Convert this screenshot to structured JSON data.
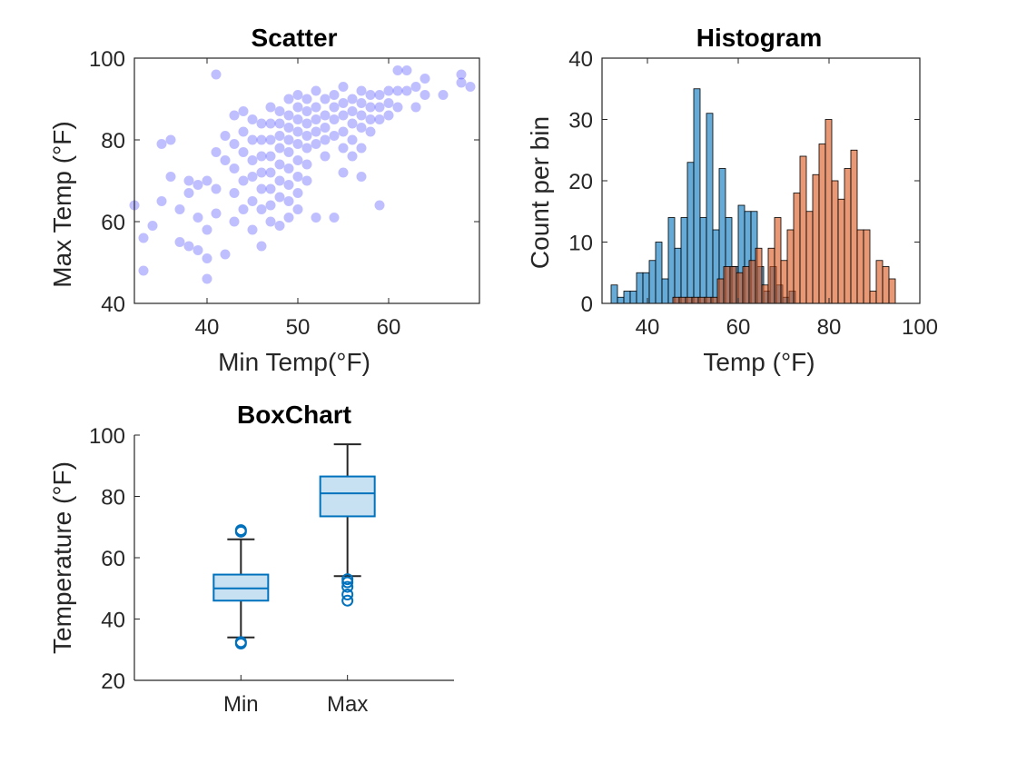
{
  "figure": {
    "background": "#ffffff",
    "colors": {
      "scatter": "#0000ff",
      "hist_min": "#0072bd",
      "hist_max": "#d95319",
      "box": "#0072bd",
      "box_fill": "#c8e1f2"
    }
  },
  "chart_data": [
    {
      "type": "scatter",
      "title": "Scatter",
      "xlabel": "Min Temp(°F)",
      "ylabel": "Max Temp (°F)",
      "xlim": [
        32,
        70
      ],
      "ylim": [
        40,
        100
      ],
      "xticks": [
        "40",
        "50",
        "60"
      ],
      "yticks": [
        "40",
        "60",
        "80",
        "100"
      ],
      "alpha": 0.25,
      "points": [
        [
          32,
          64
        ],
        [
          33,
          56
        ],
        [
          33,
          48
        ],
        [
          34,
          59
        ],
        [
          35,
          65
        ],
        [
          35,
          79
        ],
        [
          36,
          80
        ],
        [
          36,
          71
        ],
        [
          37,
          63
        ],
        [
          37,
          55
        ],
        [
          38,
          70
        ],
        [
          38,
          54
        ],
        [
          38,
          67
        ],
        [
          39,
          69
        ],
        [
          39,
          61
        ],
        [
          39,
          53
        ],
        [
          40,
          70
        ],
        [
          40,
          58
        ],
        [
          40,
          51
        ],
        [
          40,
          46
        ],
        [
          41,
          96
        ],
        [
          41,
          77
        ],
        [
          41,
          68
        ],
        [
          41,
          62
        ],
        [
          42,
          75
        ],
        [
          42,
          52
        ],
        [
          42,
          81
        ],
        [
          43,
          86
        ],
        [
          43,
          79
        ],
        [
          43,
          73
        ],
        [
          43,
          67
        ],
        [
          43,
          60
        ],
        [
          44,
          87
        ],
        [
          44,
          82
        ],
        [
          44,
          77
        ],
        [
          44,
          70
        ],
        [
          44,
          63
        ],
        [
          45,
          85
        ],
        [
          45,
          80
        ],
        [
          45,
          75
        ],
        [
          45,
          71
        ],
        [
          45,
          65
        ],
        [
          45,
          58
        ],
        [
          46,
          84
        ],
        [
          46,
          80
        ],
        [
          46,
          76
        ],
        [
          46,
          72
        ],
        [
          46,
          68
        ],
        [
          46,
          63
        ],
        [
          46,
          54
        ],
        [
          47,
          88
        ],
        [
          47,
          84
        ],
        [
          47,
          80
        ],
        [
          47,
          76
        ],
        [
          47,
          72
        ],
        [
          47,
          68
        ],
        [
          47,
          64
        ],
        [
          47,
          60
        ],
        [
          48,
          87
        ],
        [
          48,
          84
        ],
        [
          48,
          81
        ],
        [
          48,
          78
        ],
        [
          48,
          74
        ],
        [
          48,
          70
        ],
        [
          48,
          66
        ],
        [
          48,
          59
        ],
        [
          49,
          90
        ],
        [
          49,
          86
        ],
        [
          49,
          83
        ],
        [
          49,
          80
        ],
        [
          49,
          77
        ],
        [
          49,
          73
        ],
        [
          49,
          69
        ],
        [
          49,
          65
        ],
        [
          49,
          61
        ],
        [
          50,
          91
        ],
        [
          50,
          88
        ],
        [
          50,
          85
        ],
        [
          50,
          82
        ],
        [
          50,
          79
        ],
        [
          50,
          75
        ],
        [
          50,
          71
        ],
        [
          50,
          67
        ],
        [
          50,
          63
        ],
        [
          51,
          90
        ],
        [
          51,
          87
        ],
        [
          51,
          84
        ],
        [
          51,
          81
        ],
        [
          51,
          78
        ],
        [
          51,
          74
        ],
        [
          51,
          70
        ],
        [
          52,
          92
        ],
        [
          52,
          88
        ],
        [
          52,
          85
        ],
        [
          52,
          82
        ],
        [
          52,
          79
        ],
        [
          52,
          61
        ],
        [
          53,
          90
        ],
        [
          53,
          86
        ],
        [
          53,
          83
        ],
        [
          53,
          80
        ],
        [
          53,
          76
        ],
        [
          54,
          91
        ],
        [
          54,
          88
        ],
        [
          54,
          85
        ],
        [
          54,
          81
        ],
        [
          54,
          61
        ],
        [
          55,
          93
        ],
        [
          55,
          89
        ],
        [
          55,
          86
        ],
        [
          55,
          82
        ],
        [
          55,
          78
        ],
        [
          55,
          72
        ],
        [
          56,
          90
        ],
        [
          56,
          87
        ],
        [
          56,
          84
        ],
        [
          56,
          80
        ],
        [
          56,
          76
        ],
        [
          57,
          92
        ],
        [
          57,
          89
        ],
        [
          57,
          86
        ],
        [
          57,
          83
        ],
        [
          57,
          78
        ],
        [
          57,
          71
        ],
        [
          58,
          91
        ],
        [
          58,
          88
        ],
        [
          58,
          85
        ],
        [
          58,
          82
        ],
        [
          59,
          91
        ],
        [
          59,
          88
        ],
        [
          59,
          85
        ],
        [
          59,
          64
        ],
        [
          60,
          92
        ],
        [
          60,
          89
        ],
        [
          60,
          86
        ],
        [
          61,
          97
        ],
        [
          61,
          92
        ],
        [
          61,
          88
        ],
        [
          62,
          97
        ],
        [
          62,
          92
        ],
        [
          63,
          93
        ],
        [
          63,
          88
        ],
        [
          64,
          95
        ],
        [
          64,
          91
        ],
        [
          66,
          91
        ],
        [
          68,
          96
        ],
        [
          68,
          94
        ],
        [
          69,
          93
        ]
      ]
    },
    {
      "type": "bar",
      "subtype": "histogram",
      "title": "Histogram",
      "xlabel": "Temp (°F)",
      "ylabel": "Count per bin",
      "xlim": [
        30,
        100
      ],
      "ylim": [
        0,
        40
      ],
      "xticks": [
        "40",
        "60",
        "80",
        "100"
      ],
      "yticks": [
        "0",
        "10",
        "20",
        "30",
        "40"
      ],
      "bin_width": 1.4,
      "series": [
        {
          "edges_start": 32,
          "counts": [
            3,
            1,
            2,
            2,
            5,
            5,
            7,
            10,
            4,
            14,
            9,
            14,
            23,
            35,
            14,
            31,
            12,
            22,
            14,
            6,
            16,
            15,
            15,
            6,
            2,
            6,
            3,
            1,
            2
          ]
        },
        {
          "edges_start": 45.6,
          "counts": [
            1,
            1,
            1,
            1,
            1,
            1,
            1,
            4,
            6,
            6,
            5,
            6,
            7,
            9,
            3,
            9,
            14,
            7,
            12,
            18,
            24,
            15,
            21,
            26,
            30,
            20,
            17,
            22,
            25,
            12,
            12,
            2,
            7,
            6,
            4
          ]
        }
      ]
    },
    {
      "type": "box",
      "title": "BoxChart",
      "ylabel": "Temperature (°F)",
      "ylim": [
        20,
        100
      ],
      "yticks": [
        "20",
        "40",
        "60",
        "80",
        "100"
      ],
      "categories": [
        "Min",
        "Max"
      ],
      "boxes": [
        {
          "whisker_low": 34,
          "q1": 46,
          "median": 50,
          "q3": 54.5,
          "whisker_high": 66,
          "outliers": [
            69,
            68.5,
            32.5,
            32
          ]
        },
        {
          "whisker_low": 54,
          "q1": 73.5,
          "median": 81,
          "q3": 86.5,
          "whisker_high": 97,
          "outliers": [
            53,
            52,
            50.5,
            48,
            46
          ]
        }
      ]
    }
  ]
}
